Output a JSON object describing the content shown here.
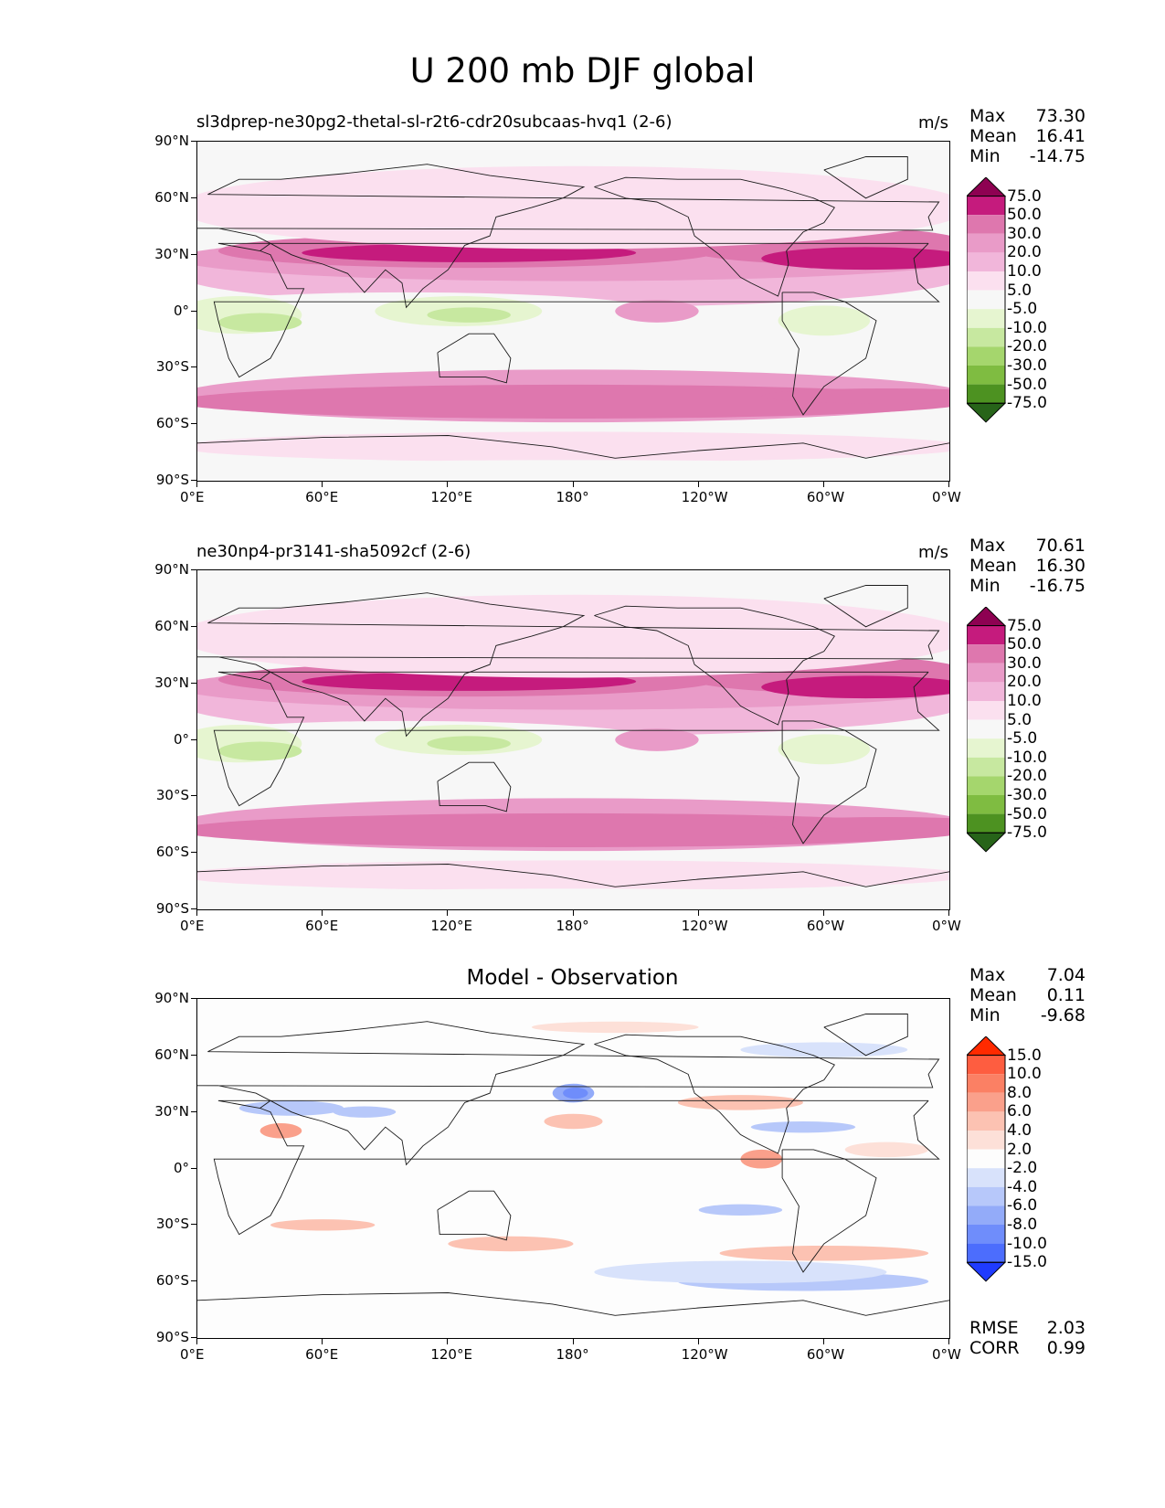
{
  "figure": {
    "suptitle": "U 200 mb DJF global"
  },
  "chart_data": [
    {
      "type": "heatmap",
      "title": "sl3dprep-ne30pg2-thetal-sl-r2t6-cdr20subcaas-hvq1 (2-6)",
      "units": "m/s",
      "xticks": [
        "0°E",
        "60°E",
        "120°E",
        "180°",
        "120°W",
        "60°W",
        "0°W"
      ],
      "yticks": [
        "90°N",
        "60°N",
        "30°N",
        "0°",
        "30°S",
        "60°S",
        "90°S"
      ],
      "xlim": [
        0,
        360
      ],
      "ylim": [
        -90,
        90
      ],
      "stats": {
        "max_label": "Max",
        "max": "73.30",
        "mean_label": "Mean",
        "mean": "16.41",
        "min_label": "Min",
        "min": "-14.75"
      },
      "colorbar": {
        "levels": [
          "75.0",
          "50.0",
          "30.0",
          "20.0",
          "10.0",
          "5.0",
          "-5.0",
          "-10.0",
          "-20.0",
          "-30.0",
          "-50.0",
          "-75.0"
        ],
        "colors": [
          "#8e0152",
          "#c51b7d",
          "#de77ae",
          "#e99bc8",
          "#f1b6da",
          "#fbe0ef",
          "#f7f7f7",
          "#e6f5d0",
          "#c7e8a0",
          "#a5d66d",
          "#7fbc41",
          "#4d9221",
          "#276419"
        ]
      }
    },
    {
      "type": "heatmap",
      "title": "ne30np4-pr3141-sha5092cf (2-6)",
      "units": "m/s",
      "xticks": [
        "0°E",
        "60°E",
        "120°E",
        "180°",
        "120°W",
        "60°W",
        "0°W"
      ],
      "yticks": [
        "90°N",
        "60°N",
        "30°N",
        "0°",
        "30°S",
        "60°S",
        "90°S"
      ],
      "xlim": [
        0,
        360
      ],
      "ylim": [
        -90,
        90
      ],
      "stats": {
        "max_label": "Max",
        "max": "70.61",
        "mean_label": "Mean",
        "mean": "16.30",
        "min_label": "Min",
        "min": "-16.75"
      },
      "colorbar": {
        "levels": [
          "75.0",
          "50.0",
          "30.0",
          "20.0",
          "10.0",
          "5.0",
          "-5.0",
          "-10.0",
          "-20.0",
          "-30.0",
          "-50.0",
          "-75.0"
        ],
        "colors": [
          "#8e0152",
          "#c51b7d",
          "#de77ae",
          "#e99bc8",
          "#f1b6da",
          "#fbe0ef",
          "#f7f7f7",
          "#e6f5d0",
          "#c7e8a0",
          "#a5d66d",
          "#7fbc41",
          "#4d9221",
          "#276419"
        ]
      }
    },
    {
      "type": "heatmap",
      "title": "Model - Observation",
      "xticks": [
        "0°E",
        "60°E",
        "120°E",
        "180°",
        "120°W",
        "60°W",
        "0°W"
      ],
      "yticks": [
        "90°N",
        "60°N",
        "30°N",
        "0°",
        "30°S",
        "60°S",
        "90°S"
      ],
      "xlim": [
        0,
        360
      ],
      "ylim": [
        -90,
        90
      ],
      "stats": {
        "max_label": "Max",
        "max": "7.04",
        "mean_label": "Mean",
        "mean": "0.11",
        "min_label": "Min",
        "min": "-9.68"
      },
      "metrics": {
        "rmse_label": "RMSE",
        "rmse": "2.03",
        "corr_label": "CORR",
        "corr": "0.99"
      },
      "colorbar": {
        "levels": [
          "15.0",
          "10.0",
          "8.0",
          "6.0",
          "4.0",
          "2.0",
          "-2.0",
          "-4.0",
          "-6.0",
          "-8.0",
          "-10.0",
          "-15.0"
        ],
        "colors": [
          "#ff2a00",
          "#fe5d40",
          "#fb8064",
          "#faa08b",
          "#fcc2b2",
          "#fde0d8",
          "#fdfdfd",
          "#d8e2fb",
          "#b7c8fa",
          "#93abf9",
          "#6f8dfb",
          "#4c6dfd",
          "#1f3bff"
        ]
      }
    }
  ]
}
